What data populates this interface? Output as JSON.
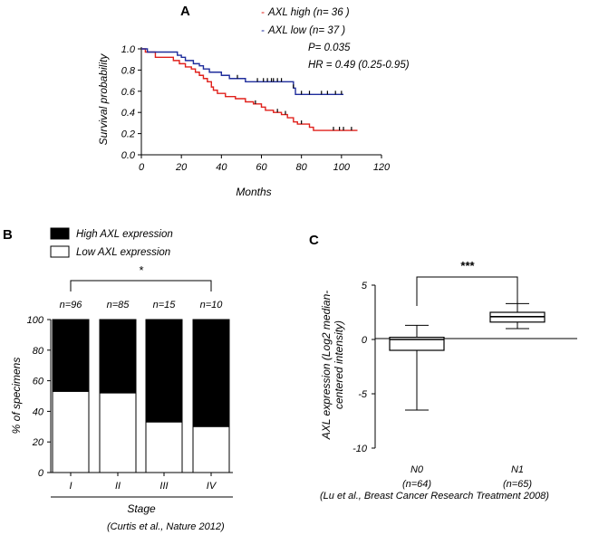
{
  "chart_data": [
    {
      "panel": "A",
      "type": "line",
      "subtype": "kaplan-meier",
      "xlabel": "Months",
      "ylabel": "Survival probability",
      "xlim": [
        0,
        120
      ],
      "ylim": [
        0.0,
        1.0
      ],
      "xticks": [
        "0",
        "20",
        "40",
        "60",
        "80",
        "100",
        "120"
      ],
      "yticks": [
        "0.0",
        "0.2",
        "0.4",
        "0.6",
        "0.8",
        "1.0"
      ],
      "legend": [
        {
          "marker": "-",
          "label": "AXL high (n= 36 )",
          "color": "#e0201b"
        },
        {
          "marker": "-",
          "label": "AXL low  (n= 37 )",
          "color": "#1f2d9c"
        }
      ],
      "stats": {
        "p": "P= 0.035",
        "hr": "HR = 0.49 (0.25-0.95)"
      },
      "series": [
        {
          "name": "AXL high",
          "color": "#e0201b",
          "steps": [
            [
              0,
              1.0
            ],
            [
              2,
              0.97
            ],
            [
              7,
              0.92
            ],
            [
              16,
              0.89
            ],
            [
              19,
              0.86
            ],
            [
              22,
              0.83
            ],
            [
              25,
              0.81
            ],
            [
              27,
              0.78
            ],
            [
              29,
              0.75
            ],
            [
              31,
              0.72
            ],
            [
              33,
              0.69
            ],
            [
              35,
              0.64
            ],
            [
              36,
              0.61
            ],
            [
              38,
              0.58
            ],
            [
              42,
              0.55
            ],
            [
              47,
              0.53
            ],
            [
              52,
              0.5
            ],
            [
              56,
              0.48
            ],
            [
              60,
              0.45
            ],
            [
              62,
              0.42
            ],
            [
              66,
              0.4
            ],
            [
              70,
              0.38
            ],
            [
              73,
              0.35
            ],
            [
              76,
              0.31
            ],
            [
              78,
              0.29
            ],
            [
              84,
              0.26
            ],
            [
              86,
              0.23
            ],
            [
              108,
              0.23
            ]
          ],
          "censor": [
            [
              57,
              0.48
            ],
            [
              68,
              0.4
            ],
            [
              72,
              0.38
            ],
            [
              80,
              0.29
            ],
            [
              96,
              0.23
            ],
            [
              99,
              0.23
            ],
            [
              101,
              0.23
            ],
            [
              105,
              0.23
            ]
          ]
        },
        {
          "name": "AXL low",
          "color": "#1f2d9c",
          "steps": [
            [
              0,
              1.0
            ],
            [
              3,
              0.97
            ],
            [
              18,
              0.94
            ],
            [
              20,
              0.92
            ],
            [
              22,
              0.89
            ],
            [
              26,
              0.86
            ],
            [
              29,
              0.84
            ],
            [
              31,
              0.81
            ],
            [
              34,
              0.78
            ],
            [
              40,
              0.75
            ],
            [
              44,
              0.72
            ],
            [
              52,
              0.69
            ],
            [
              76,
              0.63
            ],
            [
              77,
              0.57
            ],
            [
              101,
              0.57
            ]
          ],
          "censor": [
            [
              48,
              0.72
            ],
            [
              58,
              0.69
            ],
            [
              61,
              0.69
            ],
            [
              63,
              0.69
            ],
            [
              65,
              0.69
            ],
            [
              66,
              0.69
            ],
            [
              68,
              0.69
            ],
            [
              70,
              0.69
            ],
            [
              76,
              0.63
            ],
            [
              80,
              0.57
            ],
            [
              84,
              0.57
            ],
            [
              90,
              0.57
            ],
            [
              93,
              0.57
            ],
            [
              97,
              0.57
            ],
            [
              100,
              0.57
            ]
          ]
        }
      ]
    },
    {
      "panel": "B",
      "type": "bar",
      "subtype": "stacked-percent",
      "categories": [
        "I",
        "II",
        "III",
        "IV"
      ],
      "n_labels": [
        "n=96",
        "n=85",
        "n=15",
        "n=10"
      ],
      "series": [
        {
          "name": "Low AXL expression",
          "color": "#ffffff",
          "values": [
            53,
            52,
            33,
            30
          ]
        },
        {
          "name": "High AXL expression",
          "color": "#000000",
          "values": [
            47,
            48,
            67,
            70
          ]
        }
      ],
      "xlabel": "Stage",
      "ylabel": "% of specimens",
      "ylim": [
        0,
        100
      ],
      "yticks": [
        "0",
        "20",
        "40",
        "60",
        "80",
        "100"
      ],
      "significance": "*",
      "citation": "(Curtis et al., Nature 2012)"
    },
    {
      "panel": "C",
      "type": "boxplot",
      "categories": [
        "N0",
        "N1"
      ],
      "category_notes": [
        "(n=64)",
        "(n=65)"
      ],
      "boxes": [
        {
          "min": -6.5,
          "q1": -1.0,
          "median": 0.0,
          "q3": 0.2,
          "max": 1.3
        },
        {
          "min": 1.0,
          "q1": 1.6,
          "median": 2.1,
          "q3": 2.5,
          "max": 3.3
        }
      ],
      "ylabel": "AXL expression (Log2 median-centered intensity)",
      "ylabel_lines": [
        "AXL expression (Log2 median-",
        "centered intensity)"
      ],
      "ylim": [
        -10,
        5
      ],
      "yticks": [
        "-10",
        "-5",
        "0",
        "5"
      ],
      "significance": "***",
      "citation": "(Lu et al., Breast Cancer Research Treatment 2008)"
    }
  ],
  "panels": {
    "a": "A",
    "b": "B",
    "c": "C"
  }
}
